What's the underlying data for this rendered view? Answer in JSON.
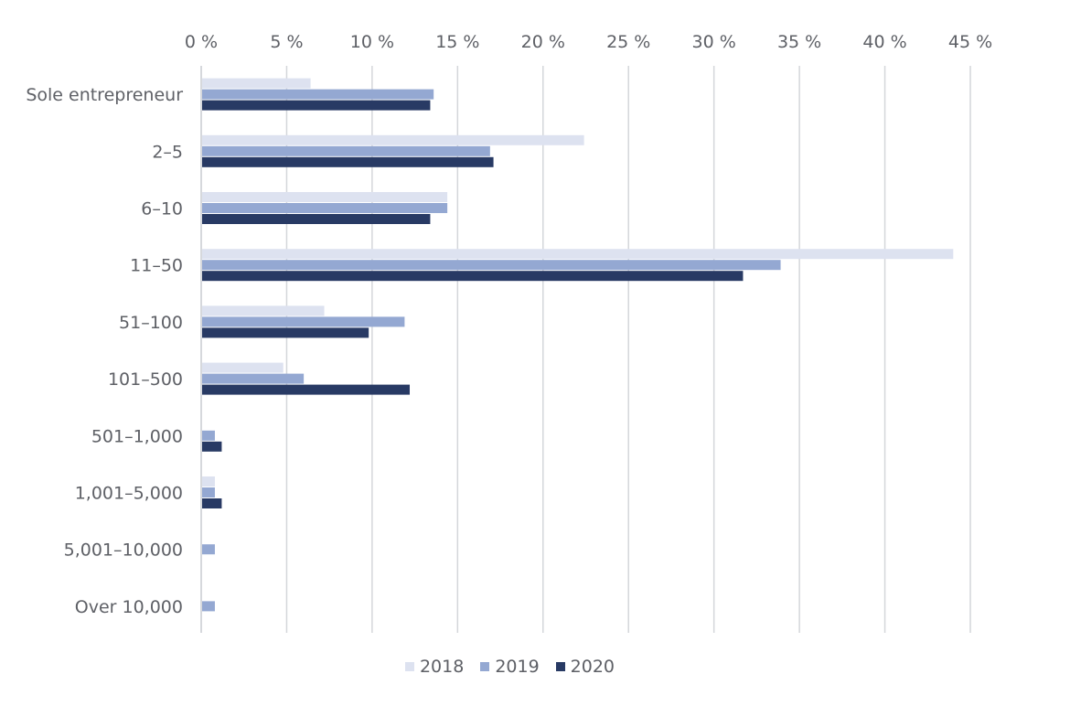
{
  "chart_data": {
    "type": "bar",
    "orientation": "horizontal",
    "title": "",
    "xlabel": "",
    "ylabel": "",
    "xlim": [
      0,
      45
    ],
    "x_ticks": [
      "0 %",
      "5 %",
      "10 %",
      "15 %",
      "20 %",
      "25 %",
      "30 %",
      "35 %",
      "40 %",
      "45 %"
    ],
    "x_axis_position": "top",
    "grid": "vertical",
    "legend_position": "bottom",
    "categories": [
      "Sole entrepreneur",
      "2–5",
      "6–10",
      "11–50",
      "51–100",
      "101–500",
      "501–1,000",
      "1,001–5,000",
      "5,001–10,000",
      "Over 10,000"
    ],
    "series": [
      {
        "name": "2018",
        "color": "#dde2f0",
        "values": [
          6.4,
          22.4,
          14.4,
          44.0,
          7.2,
          4.8,
          0,
          0.8,
          0,
          0
        ]
      },
      {
        "name": "2019",
        "color": "#94a8d2",
        "values": [
          13.6,
          16.9,
          14.4,
          33.9,
          11.9,
          6.0,
          0.8,
          0.8,
          0.8,
          0.8
        ]
      },
      {
        "name": "2020",
        "color": "#283a64",
        "values": [
          13.4,
          17.1,
          13.4,
          31.7,
          9.8,
          12.2,
          1.2,
          1.2,
          0,
          0
        ]
      }
    ]
  }
}
